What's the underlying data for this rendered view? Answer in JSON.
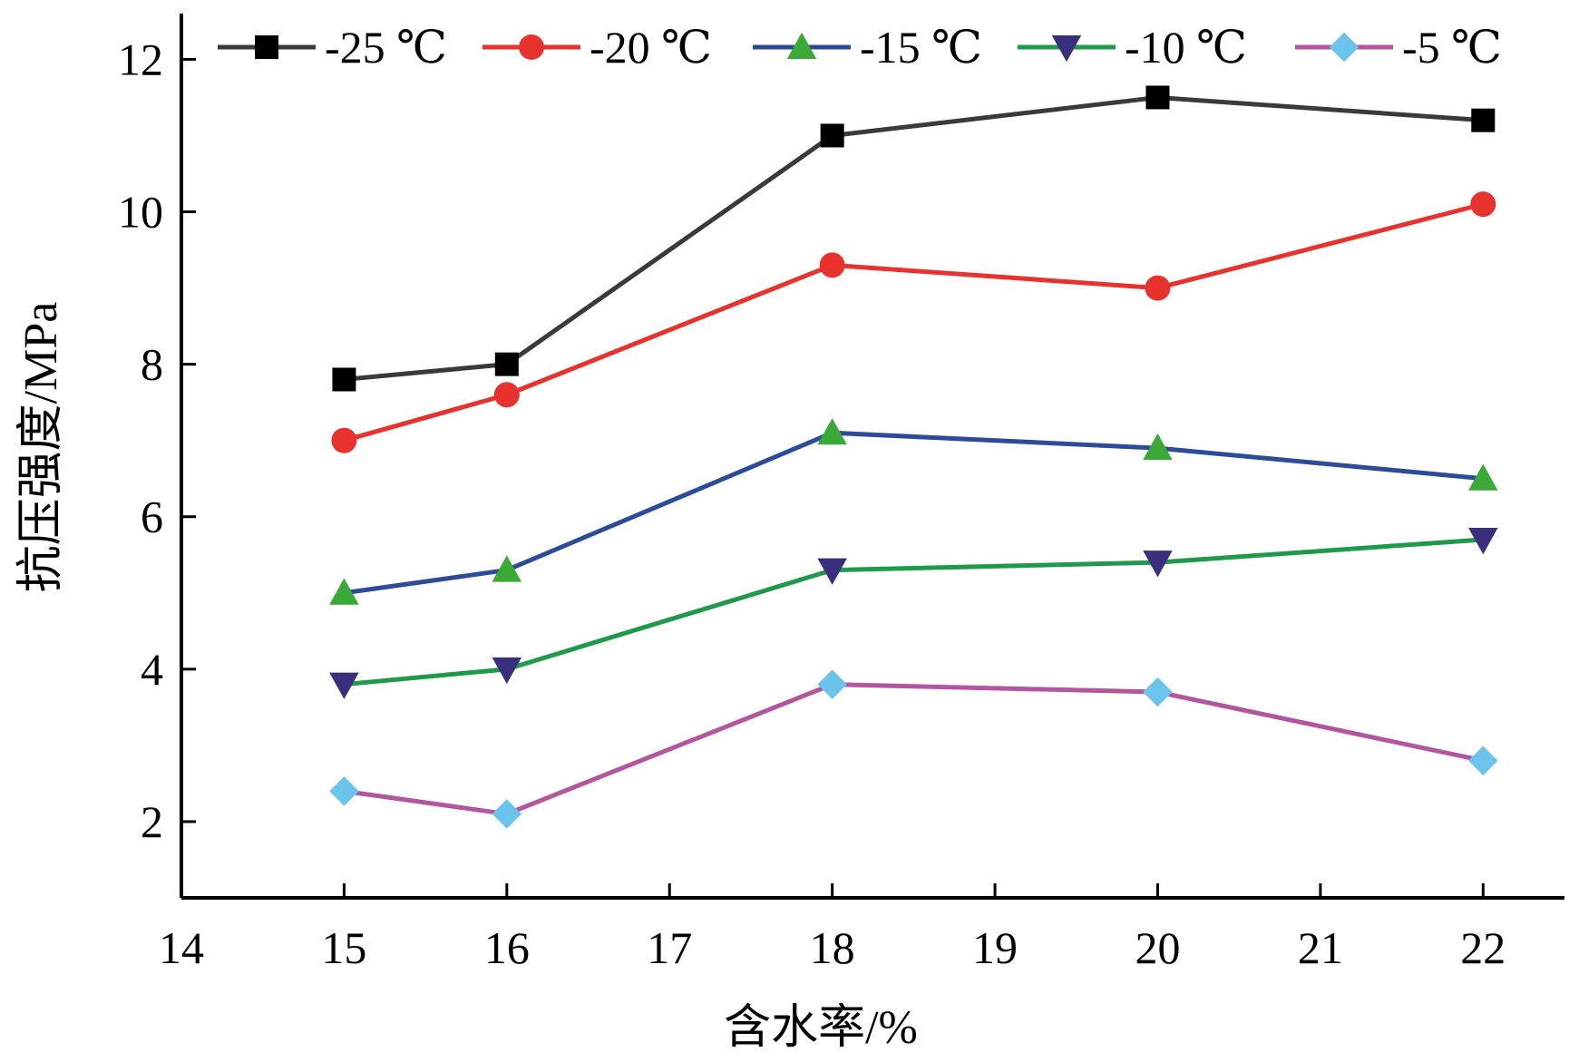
{
  "chart_data": {
    "type": "line",
    "title": "",
    "xlabel": "含水率/%",
    "ylabel": "抗压强度/MPa",
    "xlim": [
      14,
      22.5
    ],
    "ylim": [
      1,
      12.6
    ],
    "x_ticks": [
      14,
      15,
      16,
      17,
      18,
      19,
      20,
      21,
      22
    ],
    "x_tick_labels": [
      "14",
      "15",
      "16",
      "17",
      "18",
      "19",
      "20",
      "21",
      "22"
    ],
    "y_ticks": [
      2,
      4,
      6,
      8,
      10,
      12
    ],
    "y_tick_labels": [
      "2",
      "4",
      "6",
      "8",
      "10",
      "12"
    ],
    "grid": false,
    "legend_position": "top",
    "x": [
      15,
      16,
      18,
      20,
      22
    ],
    "series": [
      {
        "name": "-25 ℃",
        "values": [
          7.8,
          8.0,
          11.0,
          11.5,
          11.2
        ],
        "color": "#3a3a3a",
        "marker": "square",
        "marker_color": "#000000"
      },
      {
        "name": "-20 ℃",
        "values": [
          7.0,
          7.6,
          9.3,
          9.0,
          10.1
        ],
        "color": "#e8322e",
        "marker": "circle",
        "marker_color": "#e8322e"
      },
      {
        "name": "-15 ℃",
        "values": [
          5.0,
          5.3,
          7.1,
          6.9,
          6.5
        ],
        "color": "#2c4c9a",
        "marker": "triangle-up",
        "marker_color": "#3aa935"
      },
      {
        "name": "-10 ℃",
        "values": [
          3.8,
          4.0,
          5.3,
          5.4,
          5.7
        ],
        "color": "#1f9a4a",
        "marker": "triangle-down",
        "marker_color": "#3a2f7c"
      },
      {
        "name": "-5 ℃",
        "values": [
          2.4,
          2.1,
          3.8,
          3.7,
          2.8
        ],
        "color": "#b455a0",
        "marker": "diamond",
        "marker_color": "#6cc4ec"
      }
    ]
  }
}
